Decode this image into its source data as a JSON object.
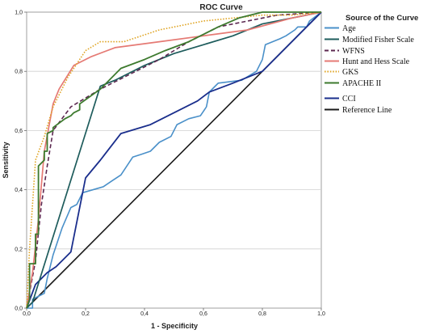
{
  "chart_data": {
    "type": "line",
    "title": "ROC Curve",
    "xlabel": "1 - Specificity",
    "ylabel": "Sensitivity",
    "xlim": [
      0,
      1
    ],
    "ylim": [
      0,
      1
    ],
    "x_ticks": [
      "0,0",
      "0,2",
      "0,4",
      "0,6",
      "0,8",
      "1,0"
    ],
    "y_ticks": [
      "0,0",
      "0,2",
      "0,4",
      "0,6",
      "0,8",
      "1,0"
    ],
    "grid": "horizontal",
    "legend_title": "Source of the Curve",
    "legend_position": "right",
    "series": [
      {
        "name": "Age",
        "color": "#4a90c9",
        "dash": "solid",
        "x": [
          0,
          0.02,
          0.02,
          0.04,
          0.06,
          0.07,
          0.09,
          0.12,
          0.15,
          0.17,
          0.19,
          0.26,
          0.29,
          0.32,
          0.34,
          0.36,
          0.39,
          0.42,
          0.45,
          0.49,
          0.51,
          0.55,
          0.59,
          0.61,
          0.62,
          0.64,
          0.65,
          0.73,
          0.78,
          0.8,
          0.81,
          0.86,
          0.88,
          0.91,
          0.92,
          0.95,
          0.96,
          1.0
        ],
        "y": [
          0,
          0,
          0.03,
          0.04,
          0.05,
          0.1,
          0.18,
          0.27,
          0.34,
          0.35,
          0.39,
          0.41,
          0.43,
          0.45,
          0.48,
          0.51,
          0.52,
          0.53,
          0.56,
          0.58,
          0.62,
          0.64,
          0.65,
          0.68,
          0.73,
          0.75,
          0.76,
          0.77,
          0.8,
          0.84,
          0.89,
          0.91,
          0.92,
          0.94,
          0.95,
          0.95,
          0.97,
          1.0
        ]
      },
      {
        "name": "Modified Fisher Scale",
        "color": "#1e5c5c",
        "dash": "solid",
        "x": [
          0,
          0.02,
          0.25,
          0.3,
          0.4,
          0.5,
          0.6,
          0.7,
          0.8,
          1.0
        ],
        "y": [
          0,
          0.02,
          0.75,
          0.77,
          0.82,
          0.86,
          0.89,
          0.92,
          0.96,
          1.0
        ]
      },
      {
        "name": "WFNS",
        "color": "#5c2850",
        "dash": "dash",
        "x": [
          0,
          0.03,
          0.05,
          0.07,
          0.09,
          0.15,
          0.25,
          0.35,
          0.45,
          0.55,
          0.65,
          0.75,
          0.85,
          1.0
        ],
        "y": [
          0,
          0.16,
          0.35,
          0.48,
          0.6,
          0.68,
          0.74,
          0.79,
          0.84,
          0.9,
          0.95,
          0.97,
          0.99,
          1.0
        ]
      },
      {
        "name": "Hunt and Hess Scale",
        "color": "#e57a74",
        "dash": "solid",
        "x": [
          0,
          0.02,
          0.04,
          0.06,
          0.09,
          0.11,
          0.16,
          0.22,
          0.3,
          0.45,
          0.6,
          0.75,
          0.9,
          1.0
        ],
        "y": [
          0,
          0.12,
          0.3,
          0.53,
          0.69,
          0.74,
          0.82,
          0.85,
          0.88,
          0.9,
          0.92,
          0.94,
          0.98,
          1.0
        ]
      },
      {
        "name": "GKS",
        "color": "#e0a627",
        "dash": "dot",
        "x": [
          0,
          0.01,
          0.03,
          0.06,
          0.09,
          0.14,
          0.2,
          0.25,
          0.33,
          0.45,
          0.6,
          0.7,
          0.8,
          0.9,
          1.0
        ],
        "y": [
          0,
          0.2,
          0.5,
          0.58,
          0.68,
          0.78,
          0.87,
          0.9,
          0.9,
          0.94,
          0.97,
          0.98,
          0.99,
          0.99,
          1.0
        ]
      },
      {
        "name": "APACHE II",
        "color": "#3d7a2e",
        "dash": "solid",
        "x": [
          0,
          0.01,
          0.01,
          0.03,
          0.03,
          0.04,
          0.04,
          0.06,
          0.06,
          0.07,
          0.07,
          0.09,
          0.09,
          0.13,
          0.15,
          0.16,
          0.18,
          0.18,
          0.25,
          0.32,
          0.4,
          0.47,
          0.55,
          0.65,
          0.72,
          0.8,
          0.85,
          0.95,
          1.0
        ],
        "y": [
          0,
          0.03,
          0.15,
          0.15,
          0.25,
          0.25,
          0.48,
          0.5,
          0.53,
          0.53,
          0.59,
          0.6,
          0.61,
          0.64,
          0.65,
          0.66,
          0.67,
          0.69,
          0.74,
          0.81,
          0.84,
          0.87,
          0.9,
          0.95,
          0.98,
          1.0,
          1.0,
          1.0,
          1.0
        ]
      },
      {
        "name": "CCI",
        "color": "#1a2e8c",
        "dash": "solid",
        "x": [
          0,
          0.03,
          0.07,
          0.1,
          0.15,
          0.2,
          0.25,
          0.32,
          0.42,
          0.5,
          0.58,
          0.62,
          0.7,
          0.8,
          0.9,
          1.0
        ],
        "y": [
          0,
          0.08,
          0.12,
          0.14,
          0.19,
          0.44,
          0.5,
          0.59,
          0.62,
          0.66,
          0.7,
          0.73,
          0.76,
          0.8,
          0.9,
          1.0
        ]
      },
      {
        "name": "Reference Line",
        "color": "#1a1a1a",
        "dash": "solid",
        "x": [
          0,
          1
        ],
        "y": [
          0,
          1
        ]
      }
    ]
  }
}
